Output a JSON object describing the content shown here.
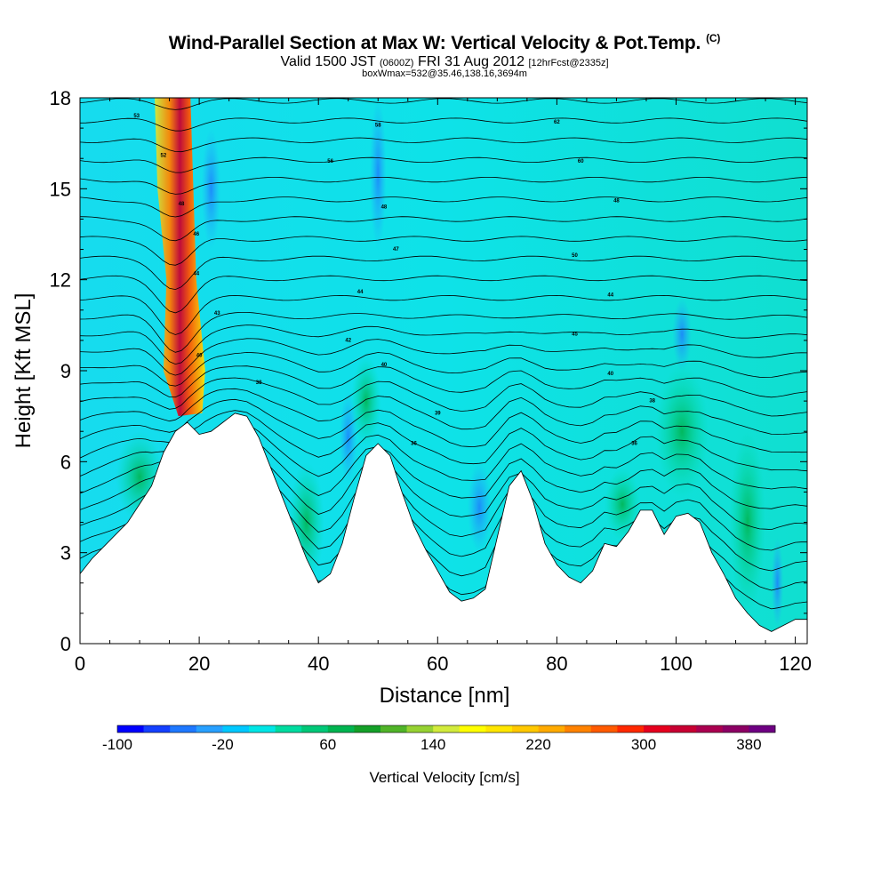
{
  "chart_data": {
    "type": "heatmap",
    "title": "Wind-Parallel Section at Max W: Vertical Velocity & Pot.Temp.",
    "title_mark": "(C)",
    "subtitle": {
      "valid": "Valid 1500 JST",
      "utc": "(0600Z)",
      "date": "FRI 31 Aug 2012",
      "fcst": "[12hrFcst@2335z]"
    },
    "subtitle2": "boxWmax=532@35.46,138.16,3694m",
    "xlabel": "Distance [nm]",
    "ylabel": "Height [Kft MSL]",
    "xlim": [
      0,
      122
    ],
    "ylim": [
      0,
      18
    ],
    "x_ticks": [
      "0",
      "20",
      "40",
      "60",
      "80",
      "100",
      "120"
    ],
    "y_ticks": [
      "0",
      "3",
      "6",
      "9",
      "12",
      "15",
      "18"
    ],
    "colorbar": {
      "label": "Vertical Velocity [cm/s]",
      "tick_labels": [
        "-100",
        "-20",
        "60",
        "140",
        "220",
        "300",
        "380"
      ],
      "colors": [
        "#0000ff",
        "#1440ff",
        "#1e78ff",
        "#28a0ff",
        "#00c8ff",
        "#00e6e6",
        "#00dca0",
        "#00c878",
        "#00b450",
        "#14a028",
        "#50b428",
        "#96d232",
        "#d2eb3c",
        "#ffff00",
        "#ffe600",
        "#ffc800",
        "#ffaa00",
        "#ff8200",
        "#ff5a00",
        "#ff2800",
        "#e6001e",
        "#c80032",
        "#aa0050",
        "#8c0064",
        "#6e0082"
      ]
    },
    "terrain_kft": [
      [
        0,
        2.3
      ],
      [
        2,
        2.8
      ],
      [
        4,
        3.2
      ],
      [
        6,
        3.6
      ],
      [
        8,
        4.0
      ],
      [
        10,
        4.6
      ],
      [
        12,
        5.2
      ],
      [
        14,
        6.3
      ],
      [
        16,
        7.0
      ],
      [
        18,
        7.3
      ],
      [
        20,
        6.9
      ],
      [
        22,
        7.0
      ],
      [
        24,
        7.3
      ],
      [
        26,
        7.6
      ],
      [
        28,
        7.5
      ],
      [
        30,
        6.8
      ],
      [
        32,
        5.8
      ],
      [
        34,
        4.8
      ],
      [
        36,
        3.8
      ],
      [
        38,
        2.8
      ],
      [
        40,
        2.0
      ],
      [
        42,
        2.3
      ],
      [
        44,
        3.3
      ],
      [
        46,
        4.8
      ],
      [
        48,
        6.2
      ],
      [
        50,
        6.6
      ],
      [
        52,
        6.2
      ],
      [
        54,
        5.0
      ],
      [
        56,
        3.9
      ],
      [
        58,
        3.1
      ],
      [
        60,
        2.4
      ],
      [
        62,
        1.7
      ],
      [
        64,
        1.4
      ],
      [
        66,
        1.5
      ],
      [
        68,
        1.8
      ],
      [
        70,
        3.5
      ],
      [
        72,
        5.2
      ],
      [
        74,
        5.7
      ],
      [
        76,
        4.7
      ],
      [
        78,
        3.3
      ],
      [
        80,
        2.6
      ],
      [
        82,
        2.2
      ],
      [
        84,
        2.0
      ],
      [
        86,
        2.4
      ],
      [
        88,
        3.3
      ],
      [
        90,
        3.2
      ],
      [
        92,
        3.7
      ],
      [
        94,
        4.4
      ],
      [
        96,
        4.4
      ],
      [
        98,
        3.6
      ],
      [
        100,
        4.2
      ],
      [
        102,
        4.3
      ],
      [
        104,
        4.0
      ],
      [
        106,
        3.0
      ],
      [
        108,
        2.3
      ],
      [
        110,
        1.5
      ],
      [
        112,
        1.0
      ],
      [
        114,
        0.6
      ],
      [
        116,
        0.4
      ],
      [
        118,
        0.6
      ],
      [
        120,
        0.8
      ],
      [
        122,
        0.8
      ]
    ],
    "theta_contour_labels": [
      {
        "text": "53",
        "x": 9.5,
        "y": 17.4
      },
      {
        "text": "52",
        "x": 14,
        "y": 16.1
      },
      {
        "text": "48",
        "x": 17,
        "y": 14.5
      },
      {
        "text": "46",
        "x": 19.5,
        "y": 13.5
      },
      {
        "text": "44",
        "x": 19.5,
        "y": 12.2
      },
      {
        "text": "43",
        "x": 23,
        "y": 10.9
      },
      {
        "text": "40",
        "x": 20,
        "y": 9.5
      },
      {
        "text": "38",
        "x": 30,
        "y": 8.6
      },
      {
        "text": "58",
        "x": 50,
        "y": 17.1
      },
      {
        "text": "56",
        "x": 42,
        "y": 15.9
      },
      {
        "text": "48",
        "x": 51,
        "y": 14.4
      },
      {
        "text": "47",
        "x": 53,
        "y": 13.0
      },
      {
        "text": "44",
        "x": 47,
        "y": 11.6
      },
      {
        "text": "42",
        "x": 45,
        "y": 10.0
      },
      {
        "text": "40",
        "x": 51,
        "y": 9.2
      },
      {
        "text": "39",
        "x": 60,
        "y": 7.6
      },
      {
        "text": "36",
        "x": 56,
        "y": 6.6
      },
      {
        "text": "62",
        "x": 80,
        "y": 17.2
      },
      {
        "text": "60",
        "x": 84,
        "y": 15.9
      },
      {
        "text": "48",
        "x": 90,
        "y": 14.6
      },
      {
        "text": "50",
        "x": 83,
        "y": 12.8
      },
      {
        "text": "44",
        "x": 89,
        "y": 11.5
      },
      {
        "text": "45",
        "x": 83,
        "y": 10.2
      },
      {
        "text": "40",
        "x": 89,
        "y": 8.9
      },
      {
        "text": "38",
        "x": 96,
        "y": 8.0
      },
      {
        "text": "36",
        "x": 93,
        "y": 6.6
      }
    ]
  }
}
